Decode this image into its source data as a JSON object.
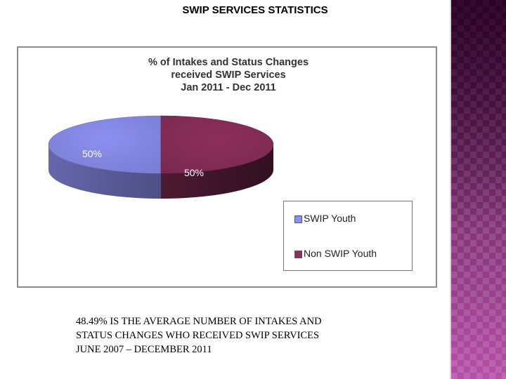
{
  "slide": {
    "title": "SWIP SERVICES STATISTICS",
    "caption": " 48.49% IS THE AVERAGE NUMBER OF INTAKES AND\nSTATUS CHANGES WHO RECEIVED SWIP SERVICES\nJUNE 2007 – DECEMBER 2011"
  },
  "chart_data": {
    "type": "pie",
    "title_lines": [
      "% of Intakes and Status Changes",
      "received SWIP Services",
      "Jan 2011 - Dec 2011"
    ],
    "categories": [
      "SWIP Youth",
      "Non SWIP Youth"
    ],
    "values": [
      50,
      50
    ],
    "data_labels": [
      "50%",
      "50%"
    ],
    "colors": [
      "#8c8ff0",
      "#8c2f5b"
    ],
    "legend_placement": "bottom-right",
    "style": "3d"
  },
  "theme": {
    "accent": "#8a2a78"
  }
}
